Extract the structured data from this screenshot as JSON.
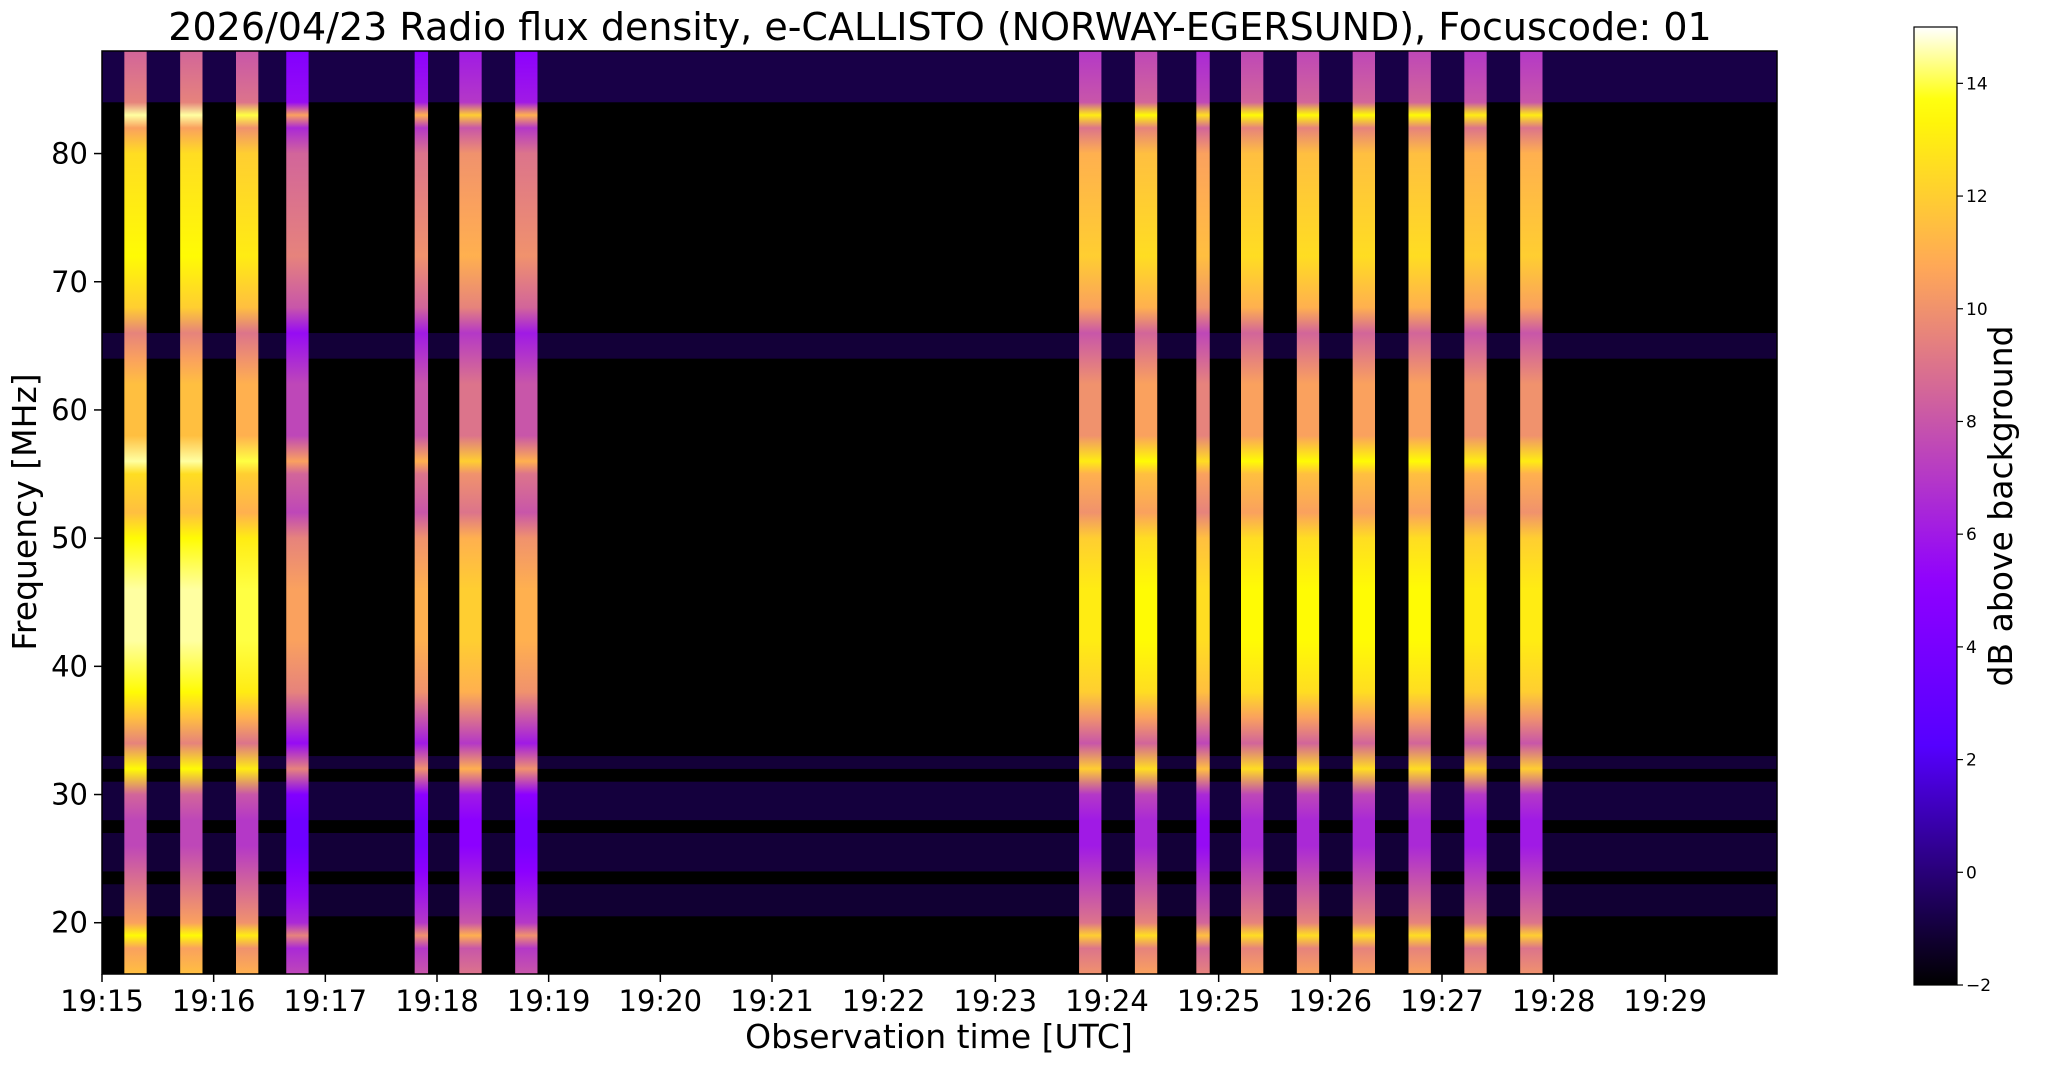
{
  "chart_data": {
    "type": "heatmap",
    "title": "2026/04/23  Radio flux density, e-CALLISTO (NORWAY-EGERSUND), Focuscode: 01",
    "xlabel": "Observation time [UTC]",
    "ylabel": "Frequency [MHz]",
    "x_unit": "minutes (UTC clock time)",
    "xlim": [
      "19:15",
      "19:30"
    ],
    "ylim": [
      16,
      88
    ],
    "x_ticks": [
      "19:15",
      "19:16",
      "19:17",
      "19:18",
      "19:19",
      "19:20",
      "19:21",
      "19:22",
      "19:23",
      "19:24",
      "19:25",
      "19:26",
      "19:27",
      "19:28",
      "19:29"
    ],
    "y_ticks": [
      20,
      30,
      40,
      50,
      60,
      70,
      80
    ],
    "colormap": "gnuplot2",
    "colorbar": {
      "label": "dB above background",
      "range": [
        -2,
        15
      ],
      "ticks": [
        -2,
        0,
        2,
        4,
        6,
        8,
        10,
        12,
        14
      ]
    },
    "background_level_db": -1.5,
    "bursts": [
      {
        "start": "19:15.20",
        "end": "19:15.40",
        "level_db": 14.5
      },
      {
        "start": "19:15.70",
        "end": "19:15.90",
        "level_db": 14.5
      },
      {
        "start": "19:16.20",
        "end": "19:16.40",
        "level_db": 14.0
      },
      {
        "start": "19:16.65",
        "end": "19:16.85",
        "level_db": 10.5
      },
      {
        "start": "19:17.80",
        "end": "19:17.92",
        "level_db": 11.0
      },
      {
        "start": "19:18.20",
        "end": "19:18.40",
        "level_db": 12.0
      },
      {
        "start": "19:18.70",
        "end": "19:18.90",
        "level_db": 11.0
      },
      {
        "start": "19:23.75",
        "end": "19:23.95",
        "level_db": 13.0
      },
      {
        "start": "19:24.25",
        "end": "19:24.45",
        "level_db": 13.5
      },
      {
        "start": "19:24.80",
        "end": "19:24.92",
        "level_db": 12.5
      },
      {
        "start": "19:25.20",
        "end": "19:25.40",
        "level_db": 13.5
      },
      {
        "start": "19:25.70",
        "end": "19:25.90",
        "level_db": 13.5
      },
      {
        "start": "19:26.20",
        "end": "19:26.40",
        "level_db": 13.5
      },
      {
        "start": "19:26.70",
        "end": "19:26.90",
        "level_db": 13.5
      },
      {
        "start": "19:27.20",
        "end": "19:27.40",
        "level_db": 13.0
      },
      {
        "start": "19:27.70",
        "end": "19:27.90",
        "level_db": 13.0
      }
    ]
  }
}
